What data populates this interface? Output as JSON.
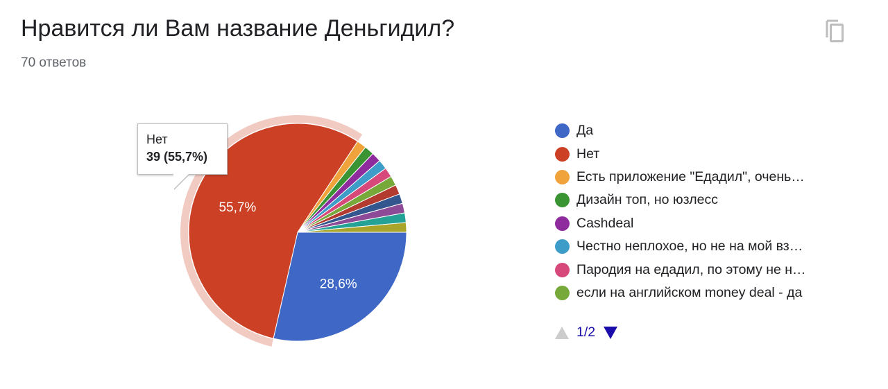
{
  "header": {
    "title": "Нравится ли Вам название Деньгидил?",
    "responses": "70 ответов",
    "copy_icon": "copy-icon"
  },
  "chart_data": {
    "type": "pie",
    "total": 70,
    "slices": [
      {
        "label": "Да",
        "count": 20,
        "percent_label": "28,6%",
        "color": "#3f67c6"
      },
      {
        "label": "Нет",
        "count": 39,
        "percent_label": "55,7%",
        "color": "#cc4125"
      },
      {
        "label": "Есть приложение \"Едадил\", очень…",
        "count": 1,
        "color": "#f1a33b"
      },
      {
        "label": "Дизайн топ, но юзлесс",
        "count": 1,
        "color": "#3a9434"
      },
      {
        "label": "Cashdeal",
        "count": 1,
        "color": "#8e2c9e"
      },
      {
        "label": "Честно неплохое, но не на мой вз…",
        "count": 1,
        "color": "#3d9cc8"
      },
      {
        "label": "Пародия на едадил, по этому не н…",
        "count": 1,
        "color": "#d6497a"
      },
      {
        "label": "если на английском money deal - да",
        "count": 1,
        "color": "#77a83a"
      },
      {
        "label": "",
        "count": 1,
        "color": "#b33a2e"
      },
      {
        "label": "",
        "count": 1,
        "color": "#34568f"
      },
      {
        "label": "",
        "count": 1,
        "color": "#8d4a96"
      },
      {
        "label": "",
        "count": 1,
        "color": "#23a295"
      },
      {
        "label": "",
        "count": 1,
        "color": "#a9a52a"
      }
    ],
    "highlighted_slice": 1
  },
  "tooltip": {
    "label": "Нет",
    "value": "39 (55,7%)"
  },
  "legend": {
    "visible_count": 8,
    "page_label": "1/2"
  }
}
